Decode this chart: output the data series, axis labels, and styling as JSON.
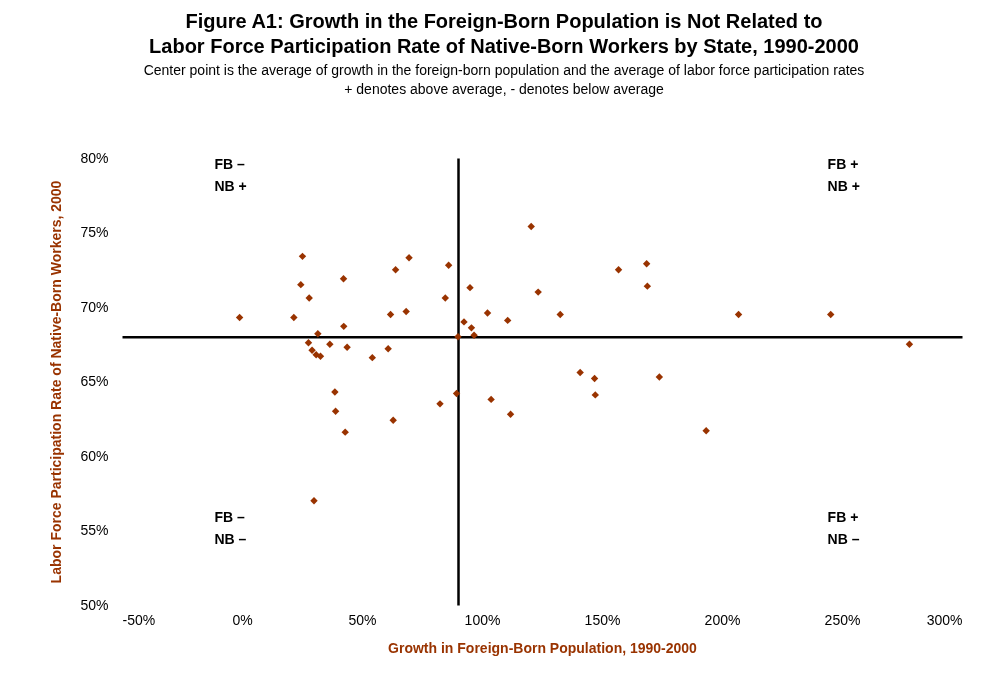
{
  "chart_data": {
    "type": "scatter",
    "title": [
      "Figure A1: Growth in the Foreign-Born Population is Not Related to",
      "Labor Force Participation Rate of Native-Born Workers by State, 1990-2000"
    ],
    "subtitle": [
      "Center point is the average of growth in the foreign-born population and the average of labor force participation rates",
      "+ denotes above average, - denotes below average"
    ],
    "xlabel": "Growth in Foreign-Born Population, 1990-2000",
    "ylabel": "Labor Force Participation Rate of Native-Born Workers, 2000",
    "annotations": [
      "FB –\nNB +",
      "FB +\nNB +",
      "FB –\nNB –",
      "FB +\nNB –"
    ],
    "x": [
      -1.0,
      25.2,
      24.5,
      28.0,
      21.6,
      31.6,
      27.7,
      29.2,
      30.9,
      32.7,
      36.6,
      42.3,
      42.4,
      43.8,
      54.3,
      60.9,
      64.0,
      69.6,
      61.9,
      68.4,
      86.1,
      84.7,
      90,
      38.7,
      39.0,
      43.0,
      63.0,
      82.5,
      89.4,
      95.0,
      92.5,
      95.6,
      96.7,
      102.3,
      110.7,
      120.5,
      123.4,
      132.6,
      156.9,
      168.6,
      168.9,
      206.9,
      245.3,
      278.1,
      140.9,
      146.9,
      147.2,
      173.9,
      193.4,
      103.8,
      111.9,
      30.0
    ],
    "series": [
      {
        "color": "#993300",
        "values": [
          69.3,
          73.4,
          71.5,
          70.6,
          69.3,
          68.2,
          67.6,
          67.1,
          66.8,
          66.7,
          67.5,
          71.9,
          68.7,
          67.3,
          66.6,
          67.2,
          72.5,
          73.3,
          69.5,
          69.7,
          72.8,
          70.6,
          68,
          64.3,
          63.0,
          61.6,
          62.4,
          63.5,
          64.2,
          71.3,
          69.0,
          68.6,
          68.1,
          69.6,
          69.1,
          75.4,
          71.0,
          69.5,
          72.5,
          72.9,
          71.4,
          69.5,
          69.5,
          67.5,
          65.6,
          65.2,
          64.1,
          65.3,
          61.7,
          63.8,
          62.8,
          57.0
        ]
      }
    ],
    "xlim": [
      -50,
      300
    ],
    "xticks": [
      {
        "value": -50,
        "label": "-50%"
      },
      {
        "value": 0,
        "label": "0%"
      },
      {
        "value": 50,
        "label": "50%"
      },
      {
        "value": 100,
        "label": "100%"
      },
      {
        "value": 150,
        "label": "150%"
      },
      {
        "value": 200,
        "label": "200%"
      },
      {
        "value": 250,
        "label": "250%"
      },
      {
        "value": 300,
        "label": "300%"
      }
    ],
    "ylim": [
      50,
      80
    ],
    "yticks": [
      {
        "value": 50,
        "label": "50%"
      },
      {
        "value": 55,
        "label": "55%"
      },
      {
        "value": 60,
        "label": "60%"
      },
      {
        "value": 65,
        "label": "65%"
      },
      {
        "value": 70,
        "label": "70%"
      },
      {
        "value": 75,
        "label": "75%"
      },
      {
        "value": 80,
        "label": "80%"
      }
    ],
    "ref_lines": [
      {
        "axis": "x",
        "value": 90
      },
      {
        "axis": "y",
        "value": 68
      }
    ],
    "marker": "diamond",
    "grid": false
  }
}
